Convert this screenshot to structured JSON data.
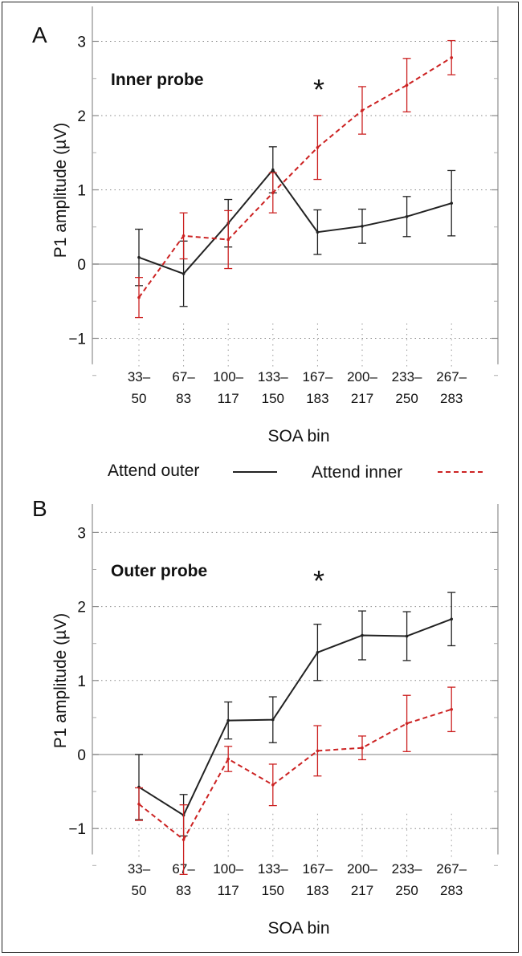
{
  "panels": [
    {
      "letter": "A",
      "probe_label": "Inner probe",
      "star": "*"
    },
    {
      "letter": "B",
      "probe_label": "Outer probe",
      "star": "*"
    }
  ],
  "legend": {
    "attend_outer": {
      "label": "Attend outer",
      "color": "#222222",
      "dash": "solid"
    },
    "attend_inner": {
      "label": "Attend inner",
      "color": "#cc2222",
      "dash": "dashed"
    }
  },
  "chart_data": [
    {
      "type": "line",
      "title": "Inner probe",
      "xlabel": "SOA bin",
      "ylabel": "P1 amplitude (µV)",
      "categories": [
        [
          "33–",
          "50"
        ],
        [
          "67–",
          "83"
        ],
        [
          "100–",
          "117"
        ],
        [
          "133–",
          "150"
        ],
        [
          "167–",
          "183"
        ],
        [
          "200–",
          "217"
        ],
        [
          "233–",
          "250"
        ],
        [
          "267–",
          "283"
        ]
      ],
      "yticks": [
        "3",
        "2",
        "1",
        "0",
        "−1"
      ],
      "ylim": [
        -1.7,
        3.4
      ],
      "grid": true,
      "annotation": "*",
      "series": [
        {
          "name": "Attend outer",
          "color": "#222222",
          "values": [
            0.09,
            -0.13,
            0.55,
            1.27,
            0.43,
            0.51,
            0.64,
            0.82
          ],
          "err": [
            0.38,
            0.44,
            0.32,
            0.31,
            0.3,
            0.23,
            0.27,
            0.44
          ]
        },
        {
          "name": "Attend inner",
          "color": "#cc2222",
          "values": [
            -0.45,
            0.38,
            0.33,
            0.96,
            1.57,
            2.07,
            2.41,
            2.78
          ],
          "err": [
            0.27,
            0.31,
            0.39,
            0.27,
            0.43,
            0.32,
            0.36,
            0.23
          ]
        }
      ]
    },
    {
      "type": "line",
      "title": "Outer probe",
      "xlabel": "SOA bin",
      "ylabel": "P1 amplitude (µV)",
      "categories": [
        [
          "33–",
          "50"
        ],
        [
          "67–",
          "83"
        ],
        [
          "100–",
          "117"
        ],
        [
          "133–",
          "150"
        ],
        [
          "167–",
          "183"
        ],
        [
          "200–",
          "217"
        ],
        [
          "233–",
          "250"
        ],
        [
          "267–",
          "283"
        ]
      ],
      "yticks": [
        "3",
        "2",
        "1",
        "0",
        "−1"
      ],
      "ylim": [
        -1.7,
        3.4
      ],
      "grid": true,
      "annotation": "*",
      "series": [
        {
          "name": "Attend outer",
          "color": "#222222",
          "values": [
            -0.44,
            -0.82,
            0.46,
            0.47,
            1.38,
            1.61,
            1.6,
            1.83
          ],
          "err": [
            0.44,
            0.28,
            0.25,
            0.31,
            0.38,
            0.33,
            0.33,
            0.36
          ]
        },
        {
          "name": "Attend inner",
          "color": "#cc2222",
          "values": [
            -0.67,
            -1.15,
            -0.06,
            -0.41,
            0.05,
            0.09,
            0.42,
            0.61
          ],
          "err": [
            0.22,
            0.47,
            0.17,
            0.28,
            0.34,
            0.16,
            0.38,
            0.3
          ]
        }
      ]
    }
  ]
}
